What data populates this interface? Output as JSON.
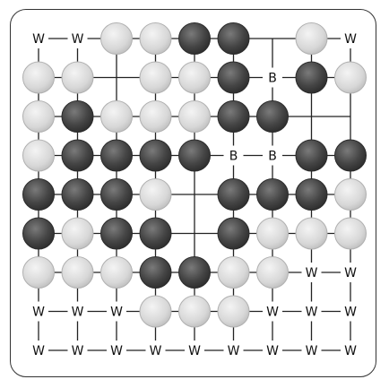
{
  "board": {
    "size": 9,
    "point_labels": {
      "white_territory": "W",
      "black_territory": "B"
    },
    "rows": [
      "WWwwbb.wW",
      "ww.wwbBbw",
      "wbwwwbb..",
      "wbbbbBBbb",
      "bbbw.bbbw",
      "bwbb.bwww",
      "wwwbbwwWW",
      "WWWwwwWWW",
      "WWWWWWWWW"
    ],
    "legend": {
      "b": "black stone",
      "w": "white stone",
      "B": "black territory label",
      "W": "white territory label",
      ".": "empty intersection"
    }
  },
  "colors": {
    "line": "#222222",
    "frame": "#333333",
    "white_stone_fill": "#d9d9d9",
    "white_stone_edge": "#b0b0b0",
    "black_stone_fill": "#444444",
    "black_stone_edge": "#2a2a2a"
  }
}
